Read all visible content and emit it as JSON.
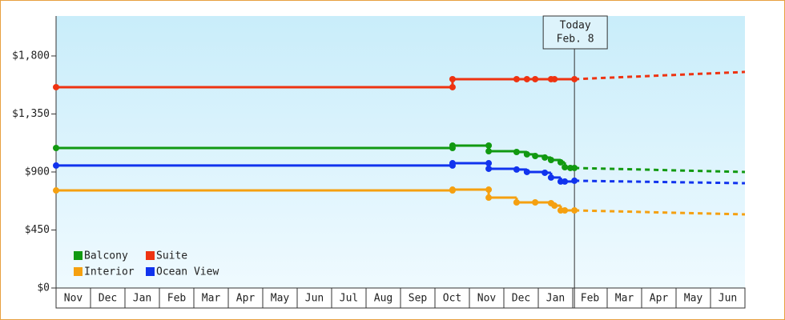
{
  "chart_data": {
    "type": "step-line",
    "categories": [
      "Nov",
      "Dec",
      "Jan",
      "Feb",
      "Mar",
      "Apr",
      "May",
      "Jun",
      "Jul",
      "Aug",
      "Sep",
      "Oct",
      "Nov",
      "Dec",
      "Jan",
      "Feb",
      "Mar",
      "Apr",
      "May",
      "Jun"
    ],
    "xlim": [
      0,
      20
    ],
    "ylim": [
      0,
      2110
    ],
    "yticks": [
      {
        "value": 0,
        "label": "$0"
      },
      {
        "value": 450,
        "label": "$450"
      },
      {
        "value": 900,
        "label": "$900"
      },
      {
        "value": 1350,
        "label": "$1,350"
      },
      {
        "value": 1800,
        "label": "$1,800"
      }
    ],
    "legend": "lower left",
    "today": {
      "x": 15.05,
      "label": [
        "Today",
        "Feb. 8"
      ]
    },
    "series": [
      {
        "name": "Balcony",
        "color": "#119911",
        "x": [
          0,
          11.51,
          11.51,
          12.56,
          12.56,
          13.37,
          13.67,
          13.91,
          14.19,
          14.37,
          14.65,
          14.77,
          14.93,
          15.05
        ],
        "values": [
          1086,
          1086,
          1105,
          1105,
          1061,
          1055,
          1037,
          1024,
          1012,
          993,
          975,
          937,
          931,
          931
        ],
        "forecast": {
          "x": [
            15.05,
            20
          ],
          "values": [
            931,
            900
          ]
        }
      },
      {
        "name": "Suite",
        "color": "#ee3311",
        "x": [
          0,
          11.51,
          11.51,
          13.37,
          13.67,
          13.91,
          14.37,
          14.47,
          15.05
        ],
        "values": [
          1558,
          1558,
          1620,
          1620,
          1620,
          1620,
          1620,
          1620,
          1620
        ],
        "forecast": {
          "x": [
            15.05,
            20
          ],
          "values": [
            1620,
            1676
          ]
        }
      },
      {
        "name": "Interior",
        "color": "#f5a010",
        "x": [
          0,
          11.51,
          11.51,
          12.56,
          12.56,
          13.37,
          13.91,
          14.37,
          14.47,
          14.65,
          14.77,
          15.05
        ],
        "values": [
          757,
          757,
          763,
          763,
          701,
          664,
          664,
          658,
          639,
          602,
          602,
          602
        ],
        "forecast": {
          "x": [
            15.05,
            20
          ],
          "values": [
            602,
            571
          ]
        }
      },
      {
        "name": "Ocean View",
        "color": "#1133ee",
        "x": [
          0,
          11.51,
          11.51,
          12.56,
          12.56,
          13.37,
          13.67,
          14.19,
          14.37,
          14.65,
          14.77,
          15.05
        ],
        "values": [
          950,
          950,
          968,
          968,
          925,
          919,
          900,
          894,
          857,
          826,
          826,
          832
        ],
        "forecast": {
          "x": [
            15.05,
            20
          ],
          "values": [
            832,
            813
          ]
        }
      }
    ]
  }
}
